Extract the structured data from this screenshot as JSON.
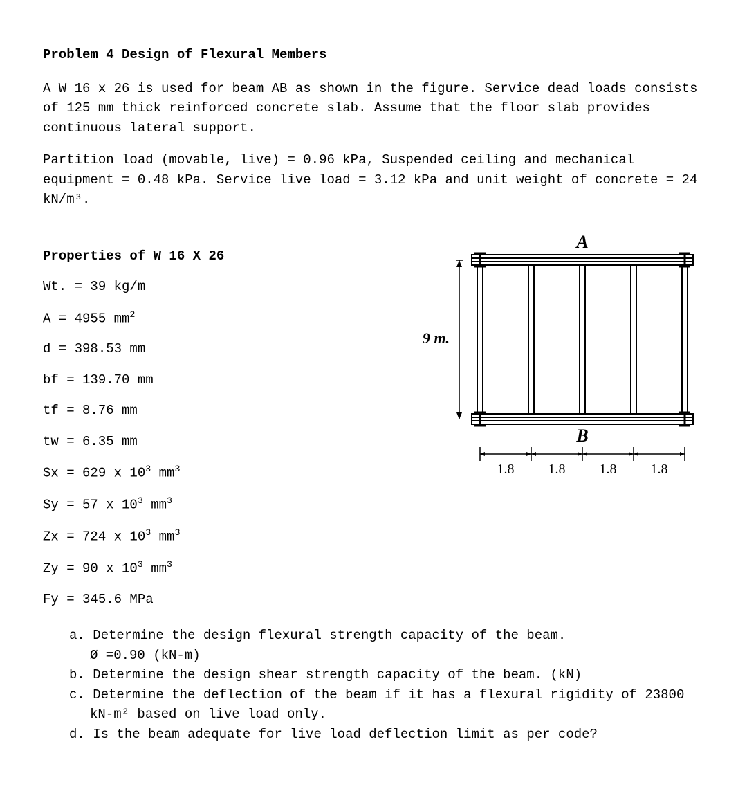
{
  "title": "Problem 4 Design of Flexural Members",
  "para1": "A W 16 x 26 is used for beam AB as shown in the figure. Service dead loads consists of 125 mm thick reinforced concrete slab. Assume that the floor slab provides continuous lateral support.",
  "para2": "Partition load (movable, live) = 0.96 kPa, Suspended ceiling and mechanical equipment = 0.48 kPa. Service live load = 3.12 kPa and unit weight of concrete = 24 kN/m³.",
  "props_title": "Properties of W 16 X 26",
  "props": {
    "wt": "Wt. = 39 kg/m",
    "A": "A = 4955 mm",
    "A_exp": "2",
    "d": "d = 398.53 mm",
    "bf": "bf = 139.70 mm",
    "tf": "tf = 8.76 mm",
    "tw": "tw = 6.35 mm",
    "Sx": "Sx = 629 x 10",
    "Sx_exp": "3",
    "Sx_unit": " mm",
    "Sx_unit_exp": "3",
    "Sy": "Sy = 57 x 10",
    "Sy_exp": "3",
    "Sy_unit": " mm",
    "Sy_unit_exp": "3",
    "Zx": "Zx = 724 x 10",
    "Zx_exp": "3",
    "Zx_unit": " mm",
    "Zx_unit_exp": "3",
    "Zy": "Zy = 90 x 10",
    "Zy_exp": "3",
    "Zy_unit": " mm",
    "Zy_unit_exp": "3",
    "Fy": "Fy = 345.6 MPa"
  },
  "figure": {
    "label_top": "A",
    "label_bottom": "B",
    "height_label": "9 m.",
    "spacing_labels": [
      "1.8",
      "1.8",
      "1.8",
      "1.8"
    ],
    "num_beams": 5,
    "beam_color": "#000000",
    "outline_color": "#000000",
    "background": "#ffffff"
  },
  "questions": {
    "a1": "a. Determine the design flexural strength capacity of the beam.",
    "a2": "Ø =0.90 (kN-m)",
    "b": "b. Determine the design shear strength capacity of the beam. (kN)",
    "c": "c. Determine the deflection of the beam if it has a flexural rigidity of 23800 kN-m² based on live load only.",
    "d": "d. Is the beam adequate for live load deflection limit as per code?"
  }
}
